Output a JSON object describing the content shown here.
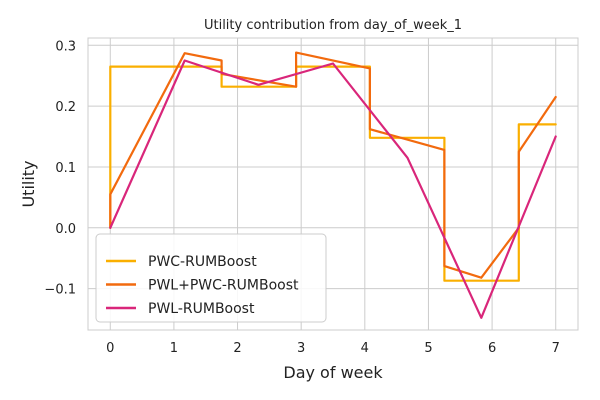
{
  "chart_data": {
    "type": "line",
    "title": "Utility contribution from day_of_week_1",
    "xlabel": "Day of week",
    "ylabel": "Utility",
    "xlim": [
      -0.35,
      7.35
    ],
    "ylim": [
      -0.168,
      0.312
    ],
    "xticks": [
      0,
      1,
      2,
      3,
      4,
      5,
      6,
      7
    ],
    "xtick_labels": [
      "0",
      "1",
      "2",
      "3",
      "4",
      "5",
      "6",
      "7"
    ],
    "yticks": [
      -0.1,
      0.0,
      0.1,
      0.2,
      0.3
    ],
    "ytick_labels": [
      "−0.1",
      "0.0",
      "0.1",
      "0.2",
      "0.3"
    ],
    "grid": true,
    "legend_position": "lower-left",
    "series": [
      {
        "name": "PWC-RUMBoost",
        "color": "#FAAF00",
        "x": [
          0,
          0,
          1.75,
          1.75,
          2.92,
          2.92,
          4.08,
          4.08,
          5.25,
          5.25,
          6.42,
          6.42,
          7
        ],
        "y": [
          0,
          0.265,
          0.265,
          0.232,
          0.232,
          0.265,
          0.265,
          0.148,
          0.148,
          -0.087,
          -0.087,
          0.17,
          0.17
        ]
      },
      {
        "name": "PWL+PWC-RUMBoost",
        "color": "#F26A0E",
        "x": [
          0,
          0,
          1.17,
          1.75,
          1.75,
          2.92,
          2.92,
          4.08,
          4.08,
          5.25,
          5.25,
          5.83,
          6.42,
          6.42,
          7
        ],
        "y": [
          0,
          0.055,
          0.287,
          0.275,
          0.253,
          0.232,
          0.288,
          0.262,
          0.162,
          0.128,
          -0.063,
          -0.082,
          0.0,
          0.125,
          0.215
        ]
      },
      {
        "name": "PWL-RUMBoost",
        "color": "#D9267A",
        "x": [
          0,
          1.17,
          2.33,
          3.5,
          4.67,
          5.83,
          7
        ],
        "y": [
          0.0,
          0.275,
          0.235,
          0.27,
          0.115,
          -0.148,
          0.15
        ]
      }
    ]
  }
}
